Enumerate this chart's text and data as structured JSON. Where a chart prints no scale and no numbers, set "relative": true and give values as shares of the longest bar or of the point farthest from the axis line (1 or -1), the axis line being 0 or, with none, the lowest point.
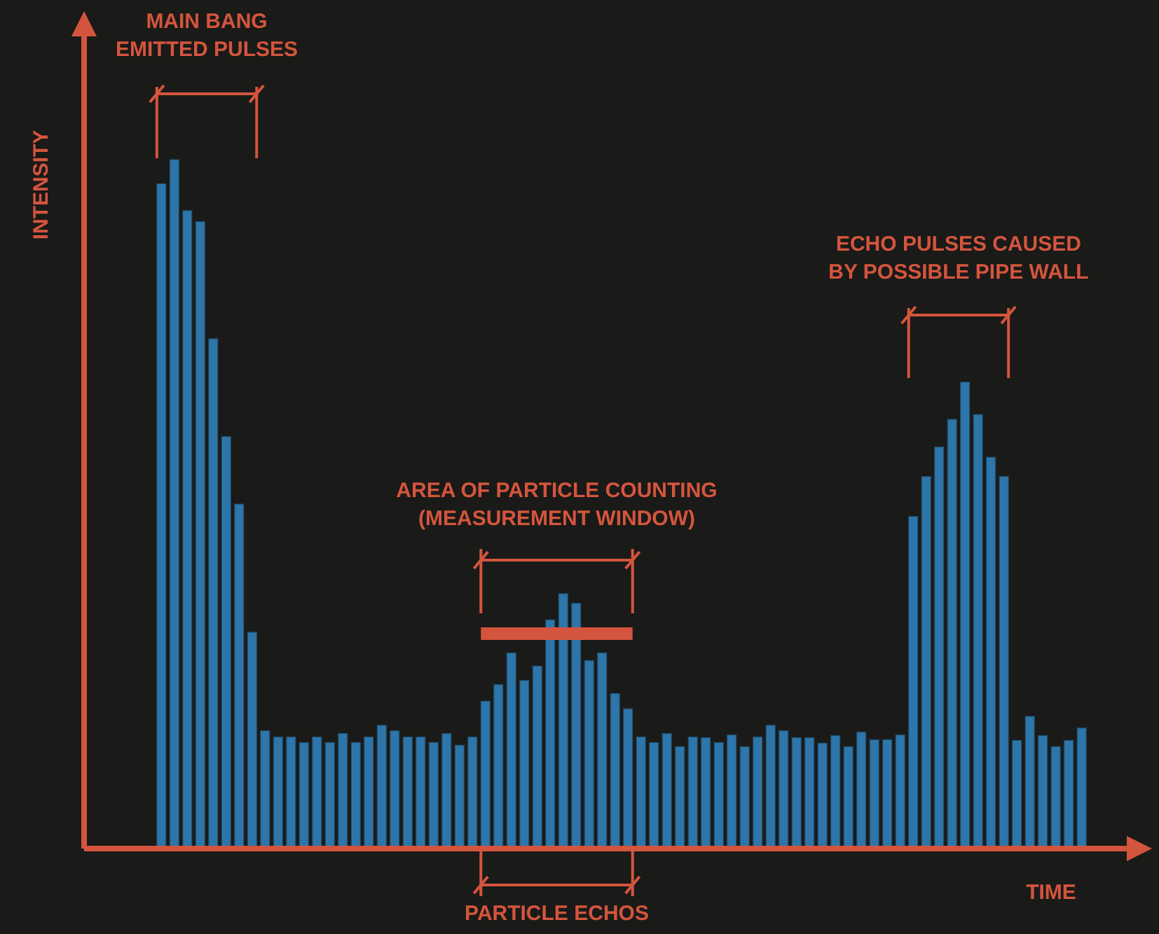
{
  "chart_data": {
    "type": "bar",
    "relative": true,
    "xlabel": "TIME",
    "ylabel": "INTENSITY",
    "color": "#2e76a9",
    "annotations": [
      "MAIN BANG\nEMITTED PULSES",
      "AREA OF PARTICLE COUNTING\n(MEASUREMENT WINDOW)",
      "ECHO PULSES CAUSED\nBY POSSIBLE PIPE WALL",
      "PARTICLE ECHOS"
    ],
    "categories": [
      null,
      null,
      null,
      null,
      null,
      null,
      null,
      null,
      null,
      null,
      null,
      null,
      null,
      null,
      null,
      null,
      null,
      null,
      null,
      null,
      null,
      null,
      null,
      null,
      null,
      null,
      null,
      null,
      null,
      null,
      null,
      null,
      null,
      null,
      null,
      null,
      null,
      null,
      null,
      null,
      null,
      null,
      null,
      null,
      null,
      null,
      null,
      null,
      null,
      null,
      null,
      null,
      null,
      null,
      null,
      null,
      null,
      null,
      null,
      null,
      null,
      null,
      null,
      null,
      null,
      null,
      null,
      null,
      null,
      null,
      null,
      null
    ],
    "values": [
      0.965,
      1,
      0.926,
      0.91,
      0.74,
      0.598,
      0.5,
      0.314,
      0.171,
      0.162,
      0.162,
      0.154,
      0.162,
      0.154,
      0.167,
      0.154,
      0.162,
      0.179,
      0.171,
      0.162,
      0.162,
      0.154,
      0.167,
      0.15,
      0.162,
      0.214,
      0.238,
      0.284,
      0.244,
      0.265,
      0.332,
      0.37,
      0.356,
      0.273,
      0.284,
      0.225,
      0.203,
      0.162,
      0.154,
      0.167,
      0.148,
      0.162,
      0.161,
      0.154,
      0.165,
      0.148,
      0.162,
      0.179,
      0.171,
      0.161,
      0.161,
      0.153,
      0.164,
      0.148,
      0.169,
      0.158,
      0.158,
      0.165,
      0.482,
      0.54,
      0.583,
      0.623,
      0.677,
      0.63,
      0.568,
      0.54,
      0.157,
      0.192,
      0.164,
      0.148,
      0.157,
      0.175
    ]
  }
}
